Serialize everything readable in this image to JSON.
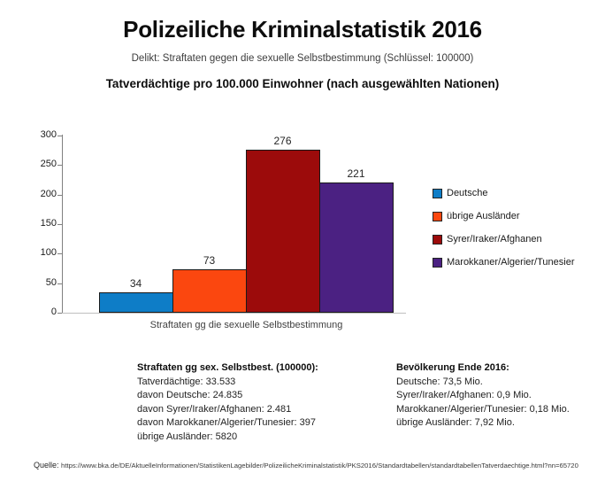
{
  "page": {
    "title": "Polizeiliche Kriminalstatistik 2016",
    "subtitle": "Delikt: Straftaten gegen die sexuelle Selbstbestimmung (Schlüssel: 100000)",
    "heading": "Tatverdächtige pro 100.000 Einwohner (nach ausgewählten Nationen)"
  },
  "chart_data": {
    "type": "bar",
    "title": "Tatverdächtige pro 100.000 Einwohner (nach ausgewählten Nationen)",
    "categories": [
      "Straftaten gg die sexuelle Selbstbestimmung"
    ],
    "series": [
      {
        "name": "Deutsche",
        "values": [
          34
        ],
        "color": "#0E7DC7"
      },
      {
        "name": "übrige Ausländer",
        "values": [
          73
        ],
        "color": "#FB470F"
      },
      {
        "name": "Syrer/Iraker/Afghanen",
        "values": [
          276
        ],
        "color": "#9C0B0B"
      },
      {
        "name": "Marokkaner/Algerier/Tunesier",
        "values": [
          221
        ],
        "color": "#4B2182"
      }
    ],
    "xlabel": "Straftaten gg die sexuelle Selbstbestimmung",
    "ylabel": "",
    "ylim": [
      0,
      300
    ],
    "yticks": [
      0,
      50,
      100,
      150,
      200,
      250,
      300
    ],
    "grid": false,
    "legend_position": "right",
    "bar_labels": true
  },
  "notes_left": {
    "heading": "Straftaten gg sex. Selbstbest. (100000):",
    "lines": [
      "Tatverdächtige: 33.533",
      "davon Deutsche: 24.835",
      "davon Syrer/Iraker/Afghanen: 2.481",
      "davon Marokkaner/Algerier/Tunesier: 397",
      "übrige Ausländer: 5820"
    ]
  },
  "notes_right": {
    "heading": "Bevölkerung Ende 2016:",
    "lines": [
      "Deutsche: 73,5 Mio.",
      "Syrer/Iraker/Afghanen: 0,9 Mio.",
      "Marokkaner/Algerier/Tunesier: 0,18 Mio.",
      "übrige Ausländer: 7,92 Mio."
    ]
  },
  "source": {
    "label": "Quelle:",
    "url": "https://www.bka.de/DE/AktuelleInformationen/StatistikenLagebilder/PolizeilicheKriminalstatistik/PKS2016/Standardtabellen/standardtabellenTatverdaechtige.html?nn=65720"
  }
}
